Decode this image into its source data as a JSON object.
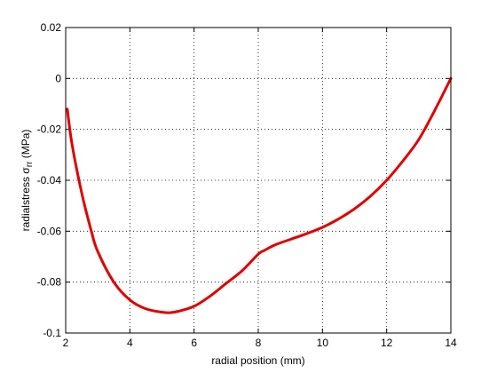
{
  "chart_data": {
    "type": "line",
    "title": "",
    "xlabel": "radial position (mm)",
    "ylabel_parts": {
      "prefix": "radialstress ",
      "symbol": "σ",
      "subscript": "rr",
      "suffix": " (MPa)"
    },
    "xlim": [
      2,
      14
    ],
    "ylim": [
      -0.1,
      0.02
    ],
    "x_ticks": [
      2,
      4,
      6,
      8,
      10,
      12,
      14
    ],
    "y_ticks": [
      0.02,
      0,
      -0.02,
      -0.04,
      -0.06,
      -0.08,
      -0.1
    ],
    "x_tick_labels": [
      "2",
      "4",
      "6",
      "8",
      "10",
      "12",
      "14"
    ],
    "y_tick_labels": [
      "0.02",
      "0",
      "-0.02",
      "-0.04",
      "-0.06",
      "-0.08",
      "-0.1"
    ],
    "grid": true,
    "series": [
      {
        "color": "#e00000",
        "x": [
          2.05,
          2.2,
          2.5,
          2.8,
          3.0,
          3.5,
          4.0,
          4.5,
          5.0,
          5.25,
          5.5,
          6.0,
          6.5,
          7.0,
          7.5,
          8.0,
          8.2,
          8.5,
          9.0,
          9.5,
          10.0,
          10.5,
          11.0,
          11.5,
          12.0,
          12.5,
          13.0,
          13.5,
          14.0
        ],
        "y": [
          -0.012,
          -0.026,
          -0.045,
          -0.06,
          -0.068,
          -0.08,
          -0.087,
          -0.0905,
          -0.0918,
          -0.092,
          -0.0915,
          -0.0895,
          -0.0855,
          -0.0805,
          -0.0755,
          -0.069,
          -0.0675,
          -0.0655,
          -0.0632,
          -0.061,
          -0.0585,
          -0.0552,
          -0.0512,
          -0.0462,
          -0.04,
          -0.0325,
          -0.024,
          -0.0125,
          0.0
        ]
      }
    ]
  }
}
